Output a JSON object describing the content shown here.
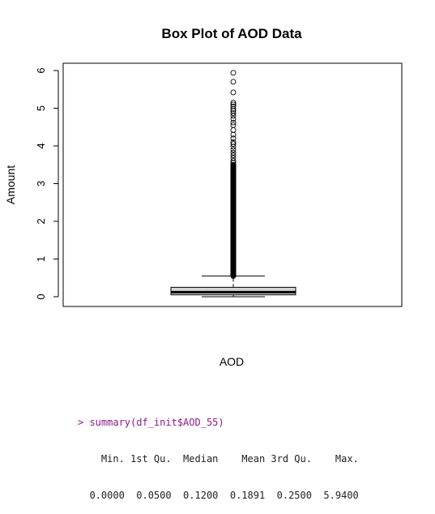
{
  "chart_data": {
    "type": "box",
    "title": "Box Plot of AOD Data",
    "xlabel": "AOD",
    "ylabel": "Amount",
    "ylim": [
      0,
      6
    ],
    "yticks": [
      0,
      1,
      2,
      3,
      4,
      5,
      6
    ],
    "box": {
      "min": 0.0,
      "lower_whisker": 0.0,
      "q1": 0.05,
      "median": 0.12,
      "q3": 0.25,
      "upper_whisker": 0.55,
      "max": 5.94
    },
    "outlier_sparse_values": [
      5.94,
      5.7,
      5.42,
      5.15,
      5.1,
      5.05,
      4.98,
      4.93,
      4.87,
      4.8,
      4.72,
      4.62,
      4.55,
      4.42,
      4.3,
      4.2,
      4.1,
      4.05,
      3.98,
      3.9,
      3.82,
      3.75,
      3.68,
      3.6,
      3.55,
      3.5
    ],
    "outlier_dense_range": [
      0.55,
      3.5
    ],
    "grid": false
  },
  "console": {
    "command": "> summary(df_init$AOD_55)",
    "headers": [
      "Min.",
      "1st Qu.",
      "Median",
      "Mean",
      "3rd Qu.",
      "Max."
    ],
    "values": [
      "0.0000",
      "0.0500",
      "0.1200",
      "0.1891",
      "0.2500",
      "5.9400"
    ]
  }
}
